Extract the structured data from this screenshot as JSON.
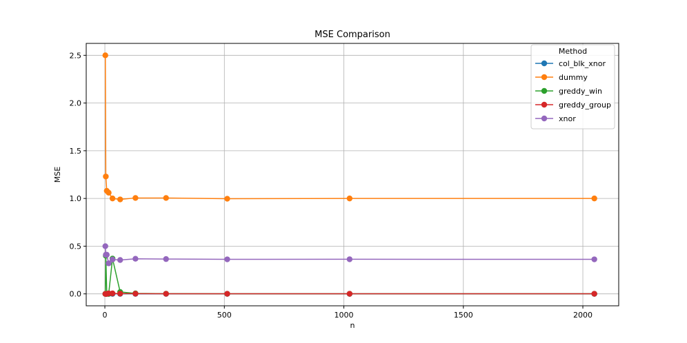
{
  "chart_data": {
    "type": "line",
    "title": "MSE Comparison",
    "xlabel": "n",
    "ylabel": "MSE",
    "xlim": [
      -78,
      2150
    ],
    "ylim": [
      -0.125,
      2.625
    ],
    "xticks": [
      0,
      500,
      1000,
      1500,
      2000
    ],
    "yticks": [
      0.0,
      0.5,
      1.0,
      1.5,
      2.0,
      2.5
    ],
    "xtick_labels": [
      "0",
      "500",
      "1000",
      "1500",
      "2000"
    ],
    "ytick_labels": [
      "0.0",
      "0.5",
      "1.0",
      "1.5",
      "2.0",
      "2.5"
    ],
    "grid": true,
    "legend": {
      "title": "Method",
      "position": "top-right"
    },
    "x": [
      2,
      4,
      8,
      16,
      32,
      64,
      128,
      256,
      512,
      1024,
      2048
    ],
    "series": [
      {
        "name": "col_blk_xnor",
        "color": "#1f77b4",
        "values": [
          0.0,
          0.0,
          0.0,
          0.0,
          0.0,
          0.0,
          0.0,
          0.0,
          0.0,
          0.0,
          0.0
        ]
      },
      {
        "name": "dummy",
        "color": "#ff7f0e",
        "values": [
          2.5,
          1.23,
          1.08,
          1.06,
          1.0,
          0.99,
          1.005,
          1.005,
          0.997,
          1.0,
          1.0
        ]
      },
      {
        "name": "greddy_win",
        "color": "#2ca02c",
        "values": [
          0.0,
          0.4,
          0.0,
          0.0,
          0.37,
          0.02,
          0.005,
          0.002,
          0.001,
          0.001,
          0.001
        ]
      },
      {
        "name": "greddy_group",
        "color": "#d62728",
        "values": [
          0.0,
          0.0,
          0.0,
          0.005,
          0.005,
          0.003,
          0.002,
          0.001,
          0.001,
          0.001,
          0.001
        ]
      },
      {
        "name": "xnor",
        "color": "#9467bd",
        "values": [
          0.5,
          0.41,
          0.41,
          0.32,
          0.36,
          0.355,
          0.368,
          0.365,
          0.362,
          0.363,
          0.362
        ]
      }
    ]
  }
}
